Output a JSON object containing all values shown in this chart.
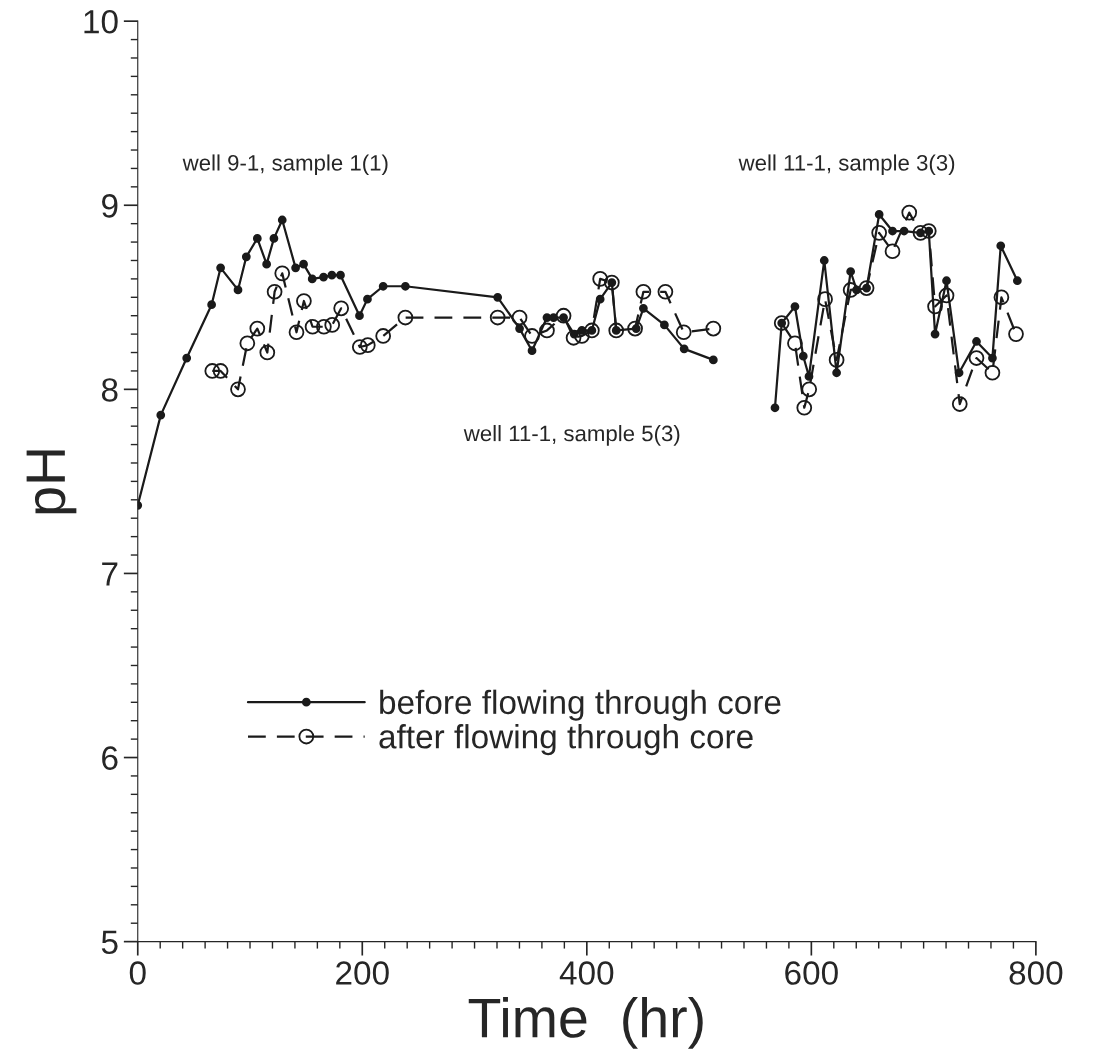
{
  "chart_data": {
    "type": "line",
    "xlabel": "Time  (hr)",
    "ylabel": "pH",
    "xlim": [
      0,
      800
    ],
    "xticks": [
      0,
      200,
      400,
      600,
      800
    ],
    "ylim": [
      5,
      10
    ],
    "yticks": [
      5,
      6,
      7,
      8,
      9,
      10
    ],
    "grid": false,
    "legend": "lower center",
    "annotations": [
      "well 9-1, sample 1(1)",
      "well 11-1, sample 5(3)",
      "well 11-1, sample 3(3)"
    ],
    "series": [
      {
        "name": "before flowing through core",
        "color": "#1a1a1a",
        "marker": "circle",
        "line_style": "solid",
        "x": [
          0,
          20.5,
          43.6,
          65.8,
          73.8,
          89.3,
          96.7,
          106.5,
          114.8,
          121.3,
          128.7,
          140.6,
          147.7,
          155.4,
          165.5,
          172.9,
          180.6,
          197.5,
          204.6,
          218.6,
          238.4,
          320.6,
          340.1,
          351.2,
          364.5,
          370.4,
          379.3,
          388.8,
          395.6,
          404.5,
          411.9,
          422.3,
          426.2,
          444,
          450.4,
          469.1,
          486.7,
          512.7,
          null,
          567.6,
          573.6,
          585.4,
          592.8,
          597.9,
          611.5,
          622.5,
          635,
          640.3,
          649.2,
          660.4,
          672.3,
          682.6,
          697.2,
          704.6,
          710.2,
          720.4,
          731.6,
          747.1,
          761.3,
          768.7,
          783.5
        ],
        "values": [
          7.37,
          7.86,
          8.17,
          8.46,
          8.66,
          8.54,
          8.72,
          8.82,
          8.68,
          8.82,
          8.92,
          8.66,
          8.68,
          8.6,
          8.61,
          8.62,
          8.62,
          8.4,
          8.49,
          8.56,
          8.56,
          8.5,
          8.33,
          8.21,
          8.39,
          8.39,
          8.39,
          8.3,
          8.32,
          8.32,
          8.49,
          8.58,
          8.32,
          8.33,
          8.44,
          8.35,
          8.22,
          8.16,
          null,
          7.9,
          8.36,
          8.45,
          8.18,
          8.07,
          8.7,
          8.09,
          8.64,
          8.54,
          8.55,
          8.95,
          8.86,
          8.86,
          8.85,
          8.86,
          8.3,
          8.59,
          8.09,
          8.26,
          8.17,
          8.78,
          8.59
        ]
      },
      {
        "name": "after flowing through core",
        "color": "#1a1a1a",
        "marker": "circle",
        "line_style": "dashed",
        "x": [
          66.4,
          73.8,
          89.3,
          97.6,
          106.5,
          115.4,
          121.9,
          128.7,
          141.4,
          148,
          155.7,
          165.8,
          173.2,
          181.2,
          197.8,
          204.9,
          218.6,
          238.4,
          320.6,
          340.1,
          351.2,
          364.5,
          379.3,
          388.2,
          395.6,
          404.5,
          411.9,
          422.3,
          426.2,
          443,
          450.4,
          470,
          486.3,
          512.7,
          null,
          573.6,
          585.4,
          593.7,
          598.1,
          612.2,
          622.5,
          635,
          649.2,
          660.4,
          672.3,
          687.2,
          697.2,
          704.6,
          710.2,
          720.4,
          732.2,
          747.1,
          761.3,
          769.3,
          782.3
        ],
        "values": [
          8.1,
          8.1,
          8.0,
          8.25,
          8.33,
          8.2,
          8.53,
          8.63,
          8.31,
          8.48,
          8.34,
          8.34,
          8.35,
          8.44,
          8.23,
          8.24,
          8.29,
          8.39,
          8.39,
          8.39,
          8.29,
          8.32,
          8.4,
          8.28,
          8.29,
          8.32,
          8.6,
          8.58,
          8.32,
          8.33,
          8.53,
          8.53,
          8.31,
          8.33,
          null,
          8.36,
          8.25,
          7.9,
          8.0,
          8.49,
          8.16,
          8.54,
          8.55,
          8.85,
          8.75,
          8.96,
          8.85,
          8.86,
          8.45,
          8.51,
          7.92,
          8.17,
          8.09,
          8.5,
          8.3
        ]
      }
    ]
  }
}
